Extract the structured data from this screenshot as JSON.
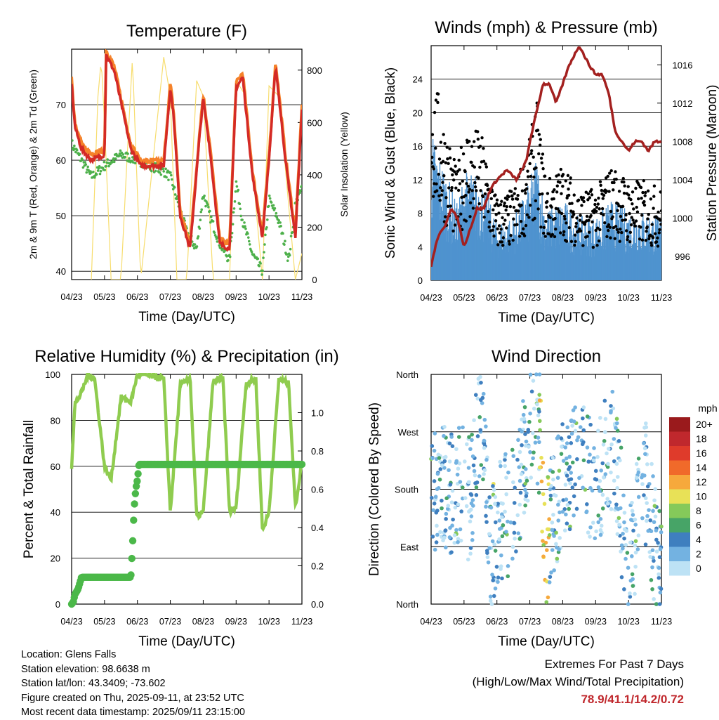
{
  "info": {
    "location": "Location: Glens Falls",
    "elevation": "Station elevation: 98.6638 m",
    "latlon": "Station lat/lon: 43.3409; -73.602",
    "created": "Figure created on Thu, 2025-09-11, at 23:52 UTC",
    "recent": "Most recent data timestamp: 2025/09/11 23:15:00"
  },
  "extremes": {
    "title": "Extremes For Past 7 Days",
    "subtitle": "(High/Low/Max Wind/Total Precipitation)",
    "values": "78.9/41.1/14.2/0.72"
  },
  "time_ticks": [
    "04/23",
    "05/23",
    "06/23",
    "07/23",
    "08/23",
    "09/23",
    "10/23",
    "11/23"
  ],
  "chart_data": [
    {
      "type": "line",
      "title": "Temperature (F)",
      "xlabel": "Time (Day/UTC)",
      "ylabel": "2m & 9m T (Red, Orange) & 2m Td (Green)",
      "y2label": "Solar Insolation (Yellow)",
      "ylim": [
        38.5,
        80
      ],
      "y2lim": [
        0,
        880
      ],
      "yticks": [
        40,
        50,
        60,
        70
      ],
      "y2ticks": [
        0,
        200,
        400,
        600,
        800
      ],
      "colors": {
        "t2m": "#d42a26",
        "t9m": "#f5822a",
        "td": "#4db04a",
        "solar": "#f7dd6e"
      },
      "series": [
        {
          "name": "2m T",
          "x": [
            0,
            0.1,
            0.3,
            0.6,
            1.0,
            1.05,
            1.3,
            1.8,
            2.1,
            2.4,
            2.6,
            2.8,
            3.0,
            3.1,
            3.3,
            3.6,
            3.9,
            4.0,
            4.2,
            4.5,
            4.8,
            5.0,
            5.2,
            5.5,
            5.8,
            6.0,
            6.2,
            6.5,
            6.8,
            7.0
          ],
          "values": [
            74,
            66,
            62,
            60,
            61,
            79,
            76,
            62,
            59,
            59,
            59,
            59,
            73,
            68,
            50,
            44,
            65,
            71,
            62,
            45,
            44,
            73,
            75,
            57,
            46,
            60,
            77,
            60,
            46,
            69
          ]
        },
        {
          "name": "2m Td",
          "x": [
            0,
            0.3,
            0.6,
            1.0,
            1.5,
            2.0,
            2.4,
            2.8,
            3.0,
            3.2,
            3.5,
            3.8,
            4.0,
            4.2,
            4.5,
            4.8,
            5.0,
            5.2,
            5.5,
            5.8,
            6.0,
            6.3,
            6.6,
            6.8,
            7.0
          ],
          "values": [
            63,
            60,
            57,
            59,
            61,
            60,
            59,
            58,
            57,
            53,
            47,
            44,
            54,
            50,
            45,
            42,
            56,
            49,
            43,
            40,
            53,
            49,
            42,
            52,
            55
          ]
        },
        {
          "name": "Solar",
          "x": [
            0.6,
            0.8,
            0.9,
            1.0,
            1.2,
            1.5,
            1.7,
            1.85,
            1.95,
            2.1,
            2.8,
            3.0,
            3.2,
            3.5,
            3.8,
            4.0,
            4.3,
            4.8,
            5.0,
            5.3,
            5.8,
            6.0,
            6.3,
            6.8,
            7.0
          ],
          "values": [
            0,
            700,
            840,
            600,
            0,
            0,
            500,
            850,
            500,
            0,
            850,
            700,
            0,
            0,
            760,
            700,
            0,
            0,
            760,
            700,
            0,
            740,
            700,
            0,
            100
          ]
        }
      ]
    },
    {
      "type": "scatter",
      "title": "Winds (mph) & Pressure (mb)",
      "xlabel": "Time (Day/UTC)",
      "ylabel": "Sonic Wind & Gust (Blue, Black)",
      "y2label": "Station Pressure (Maroon)",
      "ylim": [
        0,
        28
      ],
      "y2lim": [
        993.5,
        1018
      ],
      "yticks": [
        0,
        4,
        8,
        12,
        16,
        20,
        24
      ],
      "y2ticks": [
        996,
        1000,
        1004,
        1008,
        1012,
        1016
      ],
      "colors": {
        "wind": "#4f93cf",
        "gust": "#000000",
        "pressure": "#a3201f"
      },
      "series": [
        {
          "name": "Pressure",
          "x": [
            0,
            0.2,
            0.4,
            0.6,
            0.8,
            1.0,
            1.2,
            1.4,
            1.6,
            1.8,
            2.0,
            2.3,
            2.6,
            2.9,
            3.0,
            3.2,
            3.4,
            3.6,
            3.8,
            4.0,
            4.2,
            4.5,
            4.8,
            5.0,
            5.2,
            5.4,
            5.6,
            5.8,
            6.0,
            6.2,
            6.4,
            6.6,
            6.8,
            7.0
          ],
          "values": [
            995,
            998,
            999,
            1001,
            1000,
            997,
            999,
            1001,
            1001,
            1003,
            1004,
            1005,
            1004,
            1006,
            1008,
            1011,
            1014,
            1014,
            1012,
            1014,
            1016,
            1018,
            1016,
            1015,
            1015,
            1013,
            1009,
            1008,
            1007,
            1008,
            1008,
            1007,
            1008,
            1008
          ]
        },
        {
          "name": "Gust peaks",
          "x": [
            0,
            0.8,
            1.0,
            1.5,
            2.0,
            2.5,
            3.0,
            3.2,
            3.5,
            4.0,
            4.5,
            5.0,
            5.5,
            6.0,
            6.5,
            7.0
          ],
          "values": [
            26,
            13,
            19,
            18,
            10,
            11,
            17,
            22,
            12,
            14,
            11,
            11,
            14,
            12,
            12,
            11
          ]
        }
      ]
    },
    {
      "type": "line",
      "title": "Relative Humidity (%) & Precipitation (in)",
      "xlabel": "Time (Day/UTC)",
      "ylabel": "Percent & Total Rainfall",
      "ylim": [
        0,
        100
      ],
      "y2lim": [
        0,
        1.2
      ],
      "yticks": [
        0,
        20,
        40,
        60,
        80,
        100
      ],
      "y2ticks": [
        0.0,
        0.2,
        0.4,
        0.6,
        0.8,
        1.0
      ],
      "colors": {
        "rh": "#8fcc4f",
        "precip": "#4bb849"
      },
      "series": [
        {
          "name": "RH",
          "x": [
            0,
            0.1,
            0.3,
            0.5,
            0.7,
            1.0,
            1.2,
            1.5,
            1.8,
            2.0,
            2.2,
            2.5,
            2.8,
            3.0,
            3.3,
            3.6,
            3.8,
            4.0,
            4.3,
            4.6,
            4.8,
            5.0,
            5.3,
            5.6,
            5.8,
            6.0,
            6.3,
            6.6,
            6.8,
            7.0
          ],
          "values": [
            60,
            87,
            92,
            100,
            98,
            60,
            54,
            90,
            88,
            100,
            100,
            99,
            98,
            40,
            95,
            99,
            38,
            40,
            97,
            98,
            40,
            42,
            96,
            98,
            32,
            40,
            98,
            96,
            42,
            62
          ]
        },
        {
          "name": "Precip",
          "x": [
            0,
            0.05,
            0.1,
            0.2,
            0.3,
            1.8,
            1.85,
            1.9,
            1.95,
            2.0,
            2.05,
            7.0
          ],
          "values": [
            0,
            0.01,
            0.05,
            0.08,
            0.14,
            0.14,
            0.3,
            0.5,
            0.6,
            0.65,
            0.73,
            0.73
          ]
        }
      ]
    },
    {
      "type": "scatter",
      "title": "Wind Direction",
      "xlabel": "Time (Day/UTC)",
      "ylabel": "Direction (Colored By Speed)",
      "ylim": [
        0,
        360
      ],
      "yticks": [
        "North",
        "East",
        "South",
        "West",
        "North"
      ],
      "legend_title": "mph",
      "legend_labels": [
        "20+",
        "18",
        "16",
        "14",
        "12",
        "10",
        "8",
        "6",
        "4",
        "2",
        "0"
      ],
      "legend_colors": [
        "#9a1a1c",
        "#c0282d",
        "#df3b2b",
        "#f06a2a",
        "#f6a93c",
        "#e8e157",
        "#85c95a",
        "#47a467",
        "#3f7fbf",
        "#73b2e1",
        "#bde2f5"
      ],
      "series": [
        {
          "name": "Direction",
          "x": [
            0.1,
            0.3,
            0.5,
            0.8,
            1.0,
            1.2,
            1.5,
            1.8,
            2.0,
            2.5,
            3.0,
            3.3,
            3.5,
            4.0,
            4.5,
            5.0,
            5.5,
            6.0,
            6.5,
            6.8,
            7.0
          ],
          "values": [
            180,
            200,
            170,
            190,
            180,
            160,
            300,
            80,
            120,
            150,
            270,
            265,
            100,
            200,
            240,
            180,
            250,
            60,
            200,
            90,
            30
          ]
        }
      ]
    }
  ]
}
